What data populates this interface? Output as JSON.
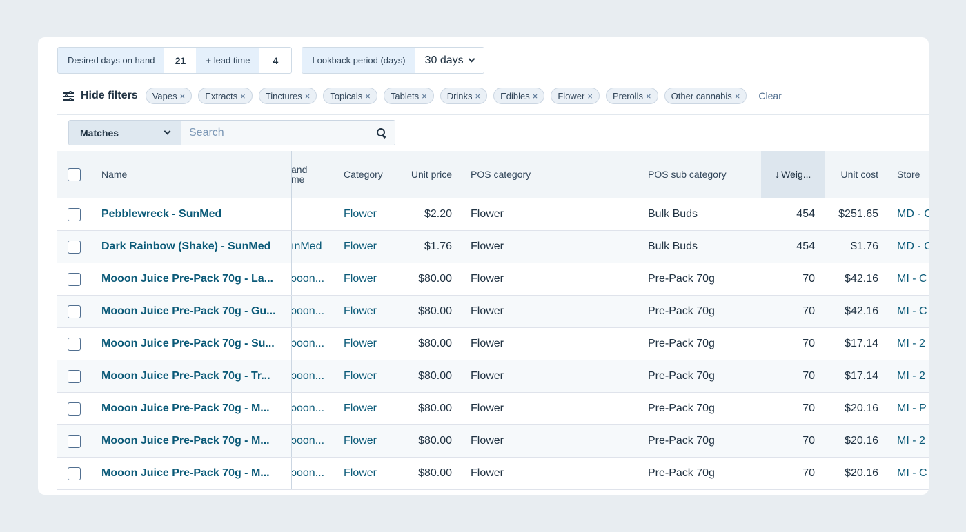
{
  "controls": {
    "desired_days_label": "Desired days on hand",
    "desired_days_value": "21",
    "lead_time_label": "+ lead time",
    "lead_time_value": "4",
    "lookback_label": "Lookback period (days)",
    "lookback_value": "30 days"
  },
  "filters": {
    "toggle_label": "Hide filters",
    "chips": [
      "Vapes",
      "Extracts",
      "Tinctures",
      "Topicals",
      "Tablets",
      "Drinks",
      "Edibles",
      "Flower",
      "Prerolls",
      "Other cannabis"
    ],
    "chip_remove": "×",
    "clear_label": "Clear"
  },
  "search": {
    "match_mode": "Matches",
    "placeholder": "Search"
  },
  "table": {
    "headers": {
      "name": "Name",
      "brand_line1": "and",
      "brand_line2": "me",
      "category": "Category",
      "unit_price": "Unit price",
      "pos_category": "POS category",
      "pos_sub_category": "POS sub category",
      "weight": "Weig...",
      "unit_cost": "Unit cost",
      "store": "Store"
    },
    "sort_arrow": "↓",
    "rows": [
      {
        "name": "Pebblewreck - SunMed",
        "brand": "",
        "category": "Flower",
        "unit_price": "$2.20",
        "pos_category": "Flower",
        "pos_sub_category": "Bulk Buds",
        "weight": "454",
        "unit_cost": "$251.65",
        "store": "MD - C"
      },
      {
        "name": "Dark Rainbow (Shake) - SunMed",
        "brand": "ınMed",
        "category": "Flower",
        "unit_price": "$1.76",
        "pos_category": "Flower",
        "pos_sub_category": "Bulk Buds",
        "weight": "454",
        "unit_cost": "$1.76",
        "store": "MD - C"
      },
      {
        "name": "Mooon Juice Pre-Pack 70g - La...",
        "brand": "ɔoon...",
        "category": "Flower",
        "unit_price": "$80.00",
        "pos_category": "Flower",
        "pos_sub_category": "Pre-Pack 70g",
        "weight": "70",
        "unit_cost": "$42.16",
        "store": "MI - C"
      },
      {
        "name": "Mooon Juice Pre-Pack 70g - Gu...",
        "brand": "ɔoon...",
        "category": "Flower",
        "unit_price": "$80.00",
        "pos_category": "Flower",
        "pos_sub_category": "Pre-Pack 70g",
        "weight": "70",
        "unit_cost": "$42.16",
        "store": "MI - C"
      },
      {
        "name": "Mooon Juice Pre-Pack 70g - Su...",
        "brand": "ɔoon...",
        "category": "Flower",
        "unit_price": "$80.00",
        "pos_category": "Flower",
        "pos_sub_category": "Pre-Pack 70g",
        "weight": "70",
        "unit_cost": "$17.14",
        "store": "MI - 2"
      },
      {
        "name": "Mooon Juice Pre-Pack 70g - Tr...",
        "brand": "ɔoon...",
        "category": "Flower",
        "unit_price": "$80.00",
        "pos_category": "Flower",
        "pos_sub_category": "Pre-Pack 70g",
        "weight": "70",
        "unit_cost": "$17.14",
        "store": "MI - 2"
      },
      {
        "name": "Mooon Juice Pre-Pack 70g - M...",
        "brand": "ɔoon...",
        "category": "Flower",
        "unit_price": "$80.00",
        "pos_category": "Flower",
        "pos_sub_category": "Pre-Pack 70g",
        "weight": "70",
        "unit_cost": "$20.16",
        "store": "MI - P"
      },
      {
        "name": "Mooon Juice Pre-Pack 70g - M...",
        "brand": "ɔoon...",
        "category": "Flower",
        "unit_price": "$80.00",
        "pos_category": "Flower",
        "pos_sub_category": "Pre-Pack 70g",
        "weight": "70",
        "unit_cost": "$20.16",
        "store": "MI - 2"
      },
      {
        "name": "Mooon Juice Pre-Pack 70g - M...",
        "brand": "ɔoon...",
        "category": "Flower",
        "unit_price": "$80.00",
        "pos_category": "Flower",
        "pos_sub_category": "Pre-Pack 70g",
        "weight": "70",
        "unit_cost": "$20.16",
        "store": "MI - C"
      }
    ]
  }
}
